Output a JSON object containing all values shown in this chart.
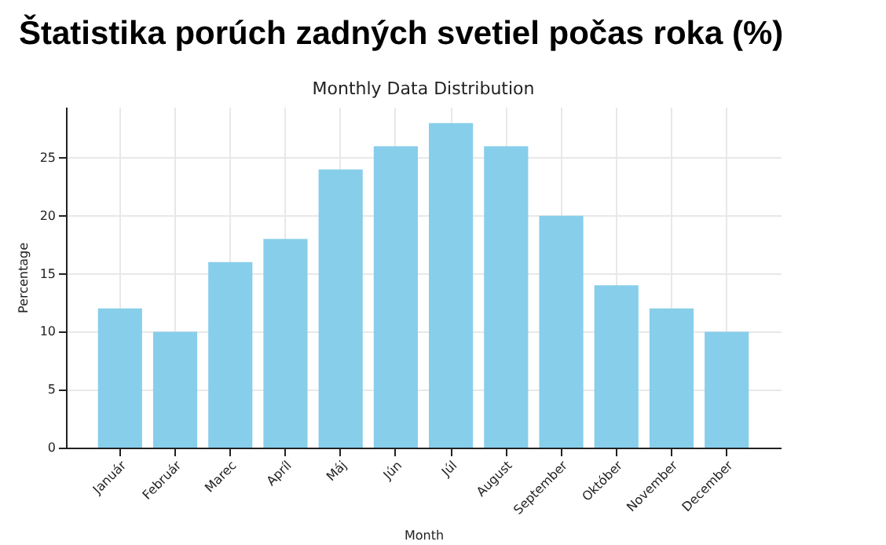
{
  "chart_data": {
    "type": "bar",
    "title": "Štatistika porúch zadných svetiel počas roka (%)",
    "subtitle": "Monthly Data Distribution",
    "xlabel": "Month",
    "ylabel": "Percentage",
    "categories": [
      "Január",
      "Február",
      "Marec",
      "Apríl",
      "Máj",
      "Jún",
      "Júl",
      "August",
      "September",
      "Október",
      "November",
      "December"
    ],
    "values": [
      12,
      10,
      16,
      18,
      24,
      26,
      28,
      26,
      20,
      14,
      12,
      10
    ],
    "color": "#87ceeb",
    "ylim": [
      0,
      29.4
    ],
    "yticks": [
      0,
      5,
      10,
      15,
      20,
      25
    ],
    "grid": true
  }
}
